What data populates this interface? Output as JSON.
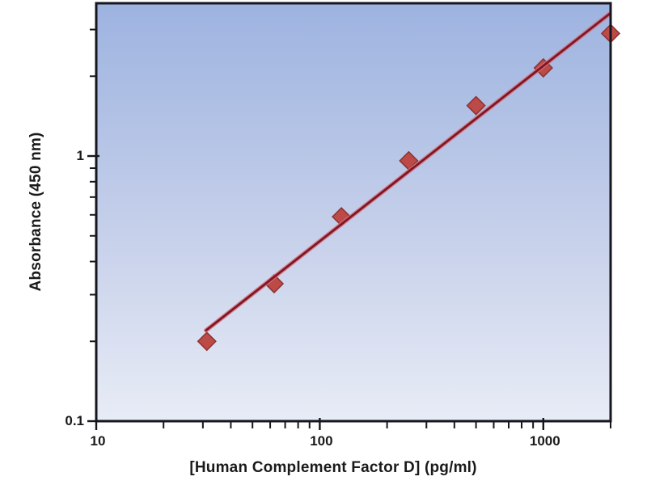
{
  "page": {
    "background_color": "#ffffff",
    "description": "ELISA standard curve plot"
  },
  "chart_data": {
    "type": "scatter",
    "title": "",
    "xlabel": "[Human Complement Factor D] (pg/ml)",
    "ylabel": "Absorbance (450 nm)",
    "x_scale": "log",
    "y_scale": "log",
    "xlim": [
      10,
      2000
    ],
    "ylim": [
      0.1,
      3.77
    ],
    "grid": false,
    "legend": "none",
    "x_ticks_major": [
      10,
      100,
      1000
    ],
    "x_tick_labels": [
      "10",
      "100",
      "1000"
    ],
    "x_ticks_minor": [
      20,
      30,
      40,
      50,
      60,
      70,
      80,
      90,
      200,
      300,
      400,
      500,
      600,
      700,
      800,
      900,
      2000
    ],
    "y_ticks_major": [
      1,
      0.1
    ],
    "y_tick_labels": [
      "1",
      "0.1"
    ],
    "y_ticks_minor": [
      0.2,
      0.3,
      0.4,
      0.5,
      0.6,
      0.7,
      0.8,
      0.9,
      2,
      3
    ],
    "series": [
      {
        "name": "standard-points",
        "type": "scatter",
        "marker": "diamond",
        "marker_fill": "#bc4b48",
        "marker_border": "#8f3432",
        "points": [
          {
            "x": 31.25,
            "y": 0.2
          },
          {
            "x": 62.5,
            "y": 0.33
          },
          {
            "x": 125,
            "y": 0.59
          },
          {
            "x": 250,
            "y": 0.96
          },
          {
            "x": 500,
            "y": 1.55
          },
          {
            "x": 1000,
            "y": 2.15
          },
          {
            "x": 2000,
            "y": 2.9
          }
        ]
      },
      {
        "name": "fit-line",
        "type": "line",
        "color": "#801525",
        "glow_color": "#d4707a",
        "points": [
          {
            "x": 31,
            "y": 0.22
          },
          {
            "x": 1980,
            "y": 3.44
          }
        ]
      }
    ],
    "style": {
      "axis_color": "#16161e",
      "plot_bg_gradient_top": "#9db3e0",
      "plot_bg_gradient_mid": "#c6d0ea",
      "plot_bg_gradient_bottom": "#e8ecf6",
      "text_color": "#1a1a1a"
    }
  }
}
